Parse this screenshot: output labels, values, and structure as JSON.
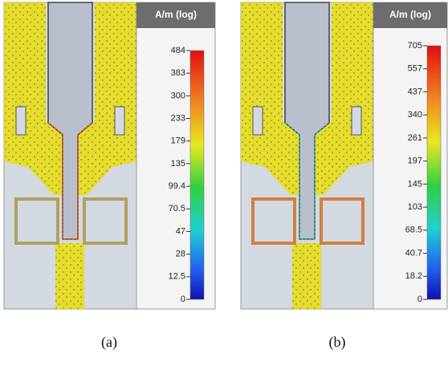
{
  "panels": [
    {
      "unit": "A/m (log)",
      "scale_labels": [
        "484",
        "383",
        "300",
        "233",
        "179",
        "135",
        "99.4",
        "70.5",
        "47",
        "28",
        "12.5",
        "0"
      ],
      "caption": "(a)"
    },
    {
      "unit": "A/m (log)",
      "scale_labels": [
        "705",
        "557",
        "437",
        "340",
        "261",
        "197",
        "145",
        "103",
        "68.5",
        "40.7",
        "18.2",
        "0"
      ],
      "caption": "(b)"
    }
  ]
}
